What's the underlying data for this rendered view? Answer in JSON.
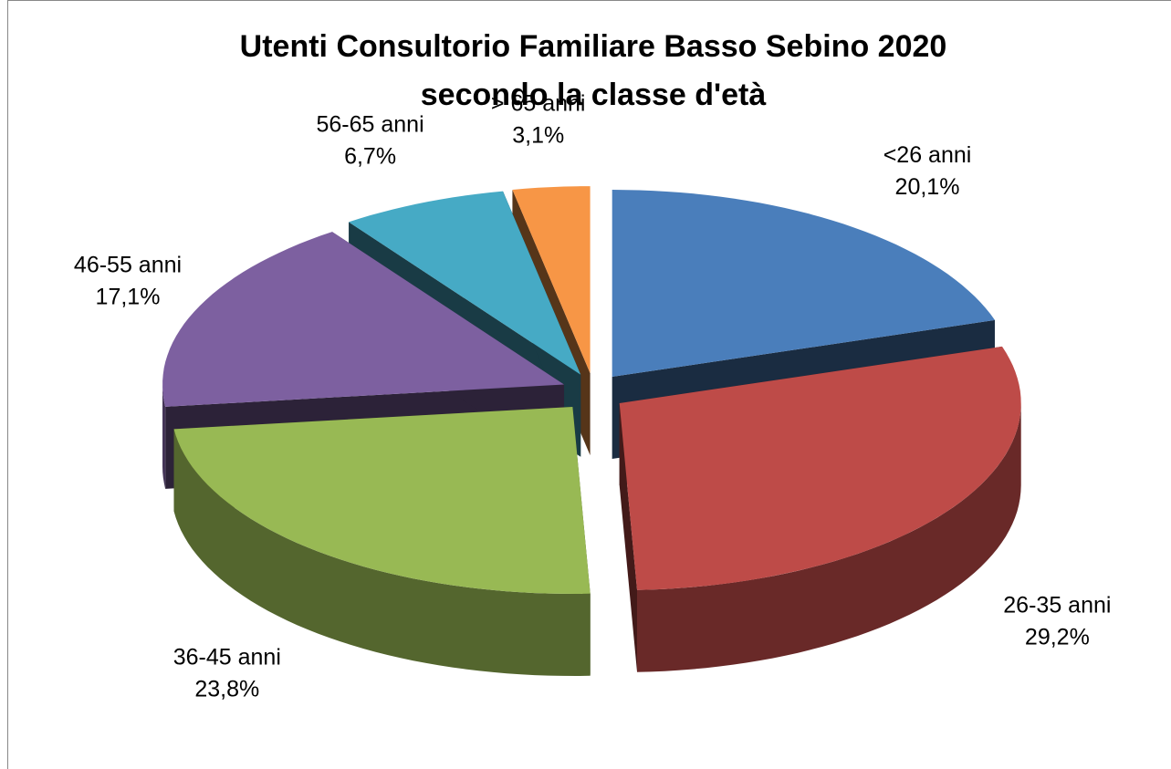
{
  "chart_data": {
    "type": "pie",
    "title": [
      "Utenti Consultorio Familiare Basso Sebino 2020",
      "secondo  la classe d'età"
    ],
    "categories": [
      "<26 anni",
      "26-35 anni",
      "36-45 anni",
      "46-55 anni",
      "56-65 anni",
      "> 65 anni"
    ],
    "values": [
      20.1,
      29.2,
      23.8,
      17.1,
      6.7,
      3.1
    ],
    "value_labels": [
      "20,1%",
      "29,2%",
      "23,8%",
      "17,1%",
      "6,7%",
      "3,1%"
    ],
    "colors": [
      "#4a7ebb",
      "#be4b48",
      "#98b954",
      "#7d60a0",
      "#46aac5",
      "#f79646"
    ]
  }
}
